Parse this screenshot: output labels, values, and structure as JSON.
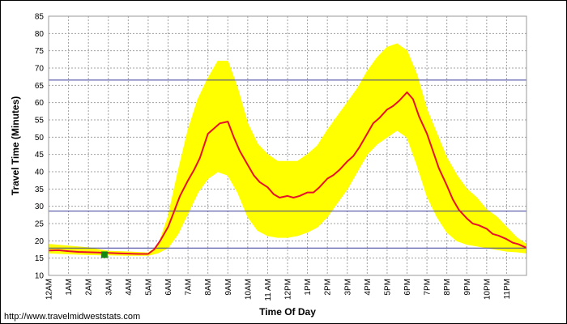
{
  "chart_data": {
    "type": "line",
    "title": "",
    "xlabel": "Time Of Day",
    "ylabel": "Travel Time (Minutes)",
    "credit": "http://www.travelmidweststats.com",
    "x_unit": "hours after midnight",
    "xlim": [
      0,
      24
    ],
    "ylim": [
      10,
      85
    ],
    "yticks": [
      10,
      15,
      20,
      25,
      30,
      35,
      40,
      45,
      50,
      55,
      60,
      65,
      70,
      75,
      80,
      85
    ],
    "xticks": [
      {
        "x": 0,
        "label": "12AM"
      },
      {
        "x": 1,
        "label": "1AM"
      },
      {
        "x": 2,
        "label": "2AM"
      },
      {
        "x": 3,
        "label": "3AM"
      },
      {
        "x": 4,
        "label": "4AM"
      },
      {
        "x": 5,
        "label": "5AM"
      },
      {
        "x": 6,
        "label": "6AM"
      },
      {
        "x": 7,
        "label": "7AM"
      },
      {
        "x": 8,
        "label": "8AM"
      },
      {
        "x": 9,
        "label": "9AM"
      },
      {
        "x": 10,
        "label": "10AM"
      },
      {
        "x": 11,
        "label": "11 AM"
      },
      {
        "x": 12,
        "label": "12PM"
      },
      {
        "x": 13,
        "label": "1PM"
      },
      {
        "x": 14,
        "label": "2PM"
      },
      {
        "x": 15,
        "label": "3PM"
      },
      {
        "x": 16,
        "label": "4PM"
      },
      {
        "x": 17,
        "label": "5PM"
      },
      {
        "x": 18,
        "label": "6PM"
      },
      {
        "x": 19,
        "label": "7PM"
      },
      {
        "x": 20,
        "label": "8PM"
      },
      {
        "x": 21,
        "label": "9PM"
      },
      {
        "x": 22,
        "label": "10PM"
      },
      {
        "x": 23,
        "label": "11PM"
      }
    ],
    "grid": true,
    "reference_lines": [
      {
        "y": 17.9,
        "color": "#3b3b9a"
      },
      {
        "y": 28.6,
        "color": "#3b3b9a"
      },
      {
        "y": 66.5,
        "color": "#3b3b9a"
      }
    ],
    "marker": {
      "x": 2.8,
      "y": 16.0,
      "color": "#118811",
      "shape": "square"
    },
    "band": {
      "color": "#ffff00",
      "x": [
        0,
        1,
        2,
        3,
        4,
        5,
        5.5,
        6,
        6.5,
        7,
        7.5,
        8,
        8.5,
        9,
        9.5,
        10,
        10.5,
        11,
        11.5,
        12,
        12.5,
        13,
        13.5,
        14,
        14.5,
        15,
        15.5,
        16,
        16.5,
        17,
        17.5,
        18,
        18.5,
        19,
        19.5,
        20,
        20.5,
        21,
        21.5,
        22,
        22.5,
        23,
        23.5,
        24
      ],
      "upper": [
        19.0,
        18.5,
        18.0,
        17.0,
        16.8,
        16.5,
        18.5,
        27.0,
        40.0,
        52.0,
        61.0,
        67.0,
        72.0,
        72.0,
        64.0,
        54.0,
        48.0,
        45.0,
        43.0,
        43.0,
        43.0,
        45.0,
        47.5,
        52.0,
        56.0,
        60.0,
        64.0,
        69.0,
        73.0,
        76.0,
        77.0,
        75.0,
        68.0,
        58.0,
        51.0,
        44.0,
        39.0,
        35.0,
        32.5,
        29.0,
        27.0,
        24.0,
        21.0,
        19.0
      ],
      "lower": [
        16.5,
        16.2,
        16.0,
        15.9,
        15.8,
        15.8,
        16.5,
        18.0,
        22.0,
        28.0,
        34.0,
        38.0,
        40.0,
        39.0,
        34.0,
        27.0,
        23.0,
        21.5,
        21.0,
        21.0,
        21.5,
        22.5,
        24.0,
        27.0,
        31.0,
        35.0,
        40.0,
        45.0,
        48.0,
        50.0,
        52.0,
        50.0,
        42.0,
        33.0,
        27.0,
        22.5,
        20.0,
        19.0,
        18.5,
        18.0,
        17.5,
        17.0,
        16.8,
        16.5
      ]
    },
    "series": [
      {
        "color": "#e8102a",
        "x": [
          0,
          0.5,
          1,
          1.5,
          2,
          2.5,
          3,
          3.5,
          4,
          4.5,
          5,
          5.3,
          5.6,
          6,
          6.3,
          6.6,
          7,
          7.3,
          7.6,
          8,
          8.3,
          8.6,
          9,
          9.3,
          9.6,
          10,
          10.3,
          10.6,
          11,
          11.3,
          11.6,
          12,
          12.3,
          12.6,
          13,
          13.3,
          13.6,
          14,
          14.3,
          14.6,
          15,
          15.3,
          15.6,
          16,
          16.3,
          16.6,
          17,
          17.3,
          17.6,
          18,
          18.3,
          18.6,
          19,
          19.3,
          19.6,
          20,
          20.3,
          20.6,
          21,
          21.3,
          21.6,
          22,
          22.3,
          22.6,
          23,
          23.3,
          23.6,
          24
        ],
        "values": [
          17.2,
          17.3,
          17.0,
          16.8,
          16.7,
          16.6,
          16.5,
          16.4,
          16.3,
          16.2,
          16.2,
          17.5,
          20.0,
          24.0,
          28.5,
          33.0,
          37.5,
          40.5,
          44.0,
          51.0,
          52.5,
          54.0,
          54.5,
          50.0,
          46.0,
          42.0,
          39.0,
          37.0,
          35.5,
          33.5,
          32.5,
          33.0,
          32.5,
          33.0,
          34.0,
          34.0,
          35.5,
          38.0,
          39.0,
          40.5,
          43.0,
          44.5,
          47.0,
          51.0,
          54.0,
          55.5,
          58.0,
          59.0,
          60.5,
          63.0,
          61.0,
          56.0,
          51.0,
          46.0,
          41.0,
          36.0,
          32.0,
          29.0,
          26.5,
          25.0,
          24.5,
          23.5,
          22.0,
          21.5,
          20.5,
          19.5,
          19.0,
          18.0
        ]
      }
    ]
  }
}
